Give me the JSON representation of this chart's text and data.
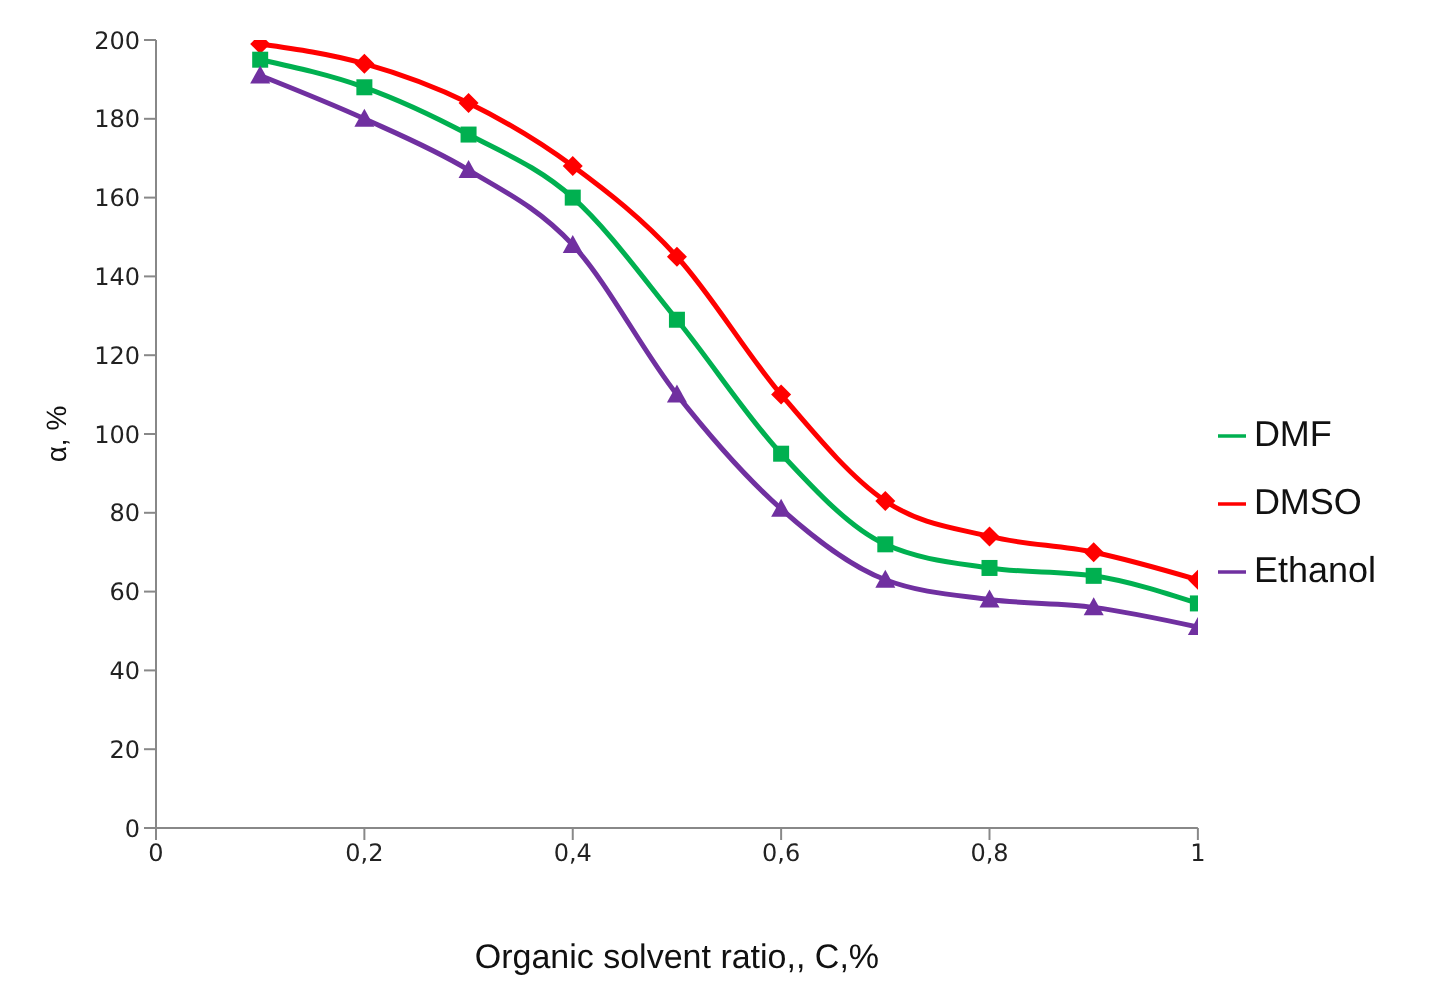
{
  "chart_data": {
    "type": "line",
    "xlabel": "Organic solvent ratio,, C,%",
    "ylabel": "α, %",
    "x": [
      0.1,
      0.2,
      0.3,
      0.4,
      0.5,
      0.6,
      0.7,
      0.8,
      0.9,
      1
    ],
    "series": [
      {
        "name": "DMSO",
        "color": "#ff0000",
        "marker": "diamond",
        "values": [
          199,
          194,
          184,
          168,
          145,
          110,
          83,
          74,
          70,
          63
        ]
      },
      {
        "name": "DMF",
        "color": "#00b050",
        "marker": "square",
        "values": [
          195,
          188,
          176,
          160,
          129,
          95,
          72,
          66,
          64,
          57
        ]
      },
      {
        "name": "Ethanol",
        "color": "#7030a0",
        "marker": "triangle",
        "values": [
          191,
          180,
          167,
          148,
          110,
          81,
          63,
          58,
          56,
          51
        ]
      }
    ],
    "xlim": [
      0,
      1
    ],
    "xticks": [
      0,
      {
        "value": 0.2,
        "label": "0,2"
      },
      {
        "value": 0.4,
        "label": "0,4"
      },
      {
        "value": 0.6,
        "label": "0,6"
      },
      {
        "value": 0.8,
        "label": "0,8"
      },
      1
    ],
    "ylim": [
      0,
      200
    ],
    "yticks": [
      0,
      20,
      40,
      60,
      80,
      100,
      120,
      140,
      160,
      180,
      200
    ],
    "grid": false,
    "legend": "right",
    "line_style": "solid"
  }
}
